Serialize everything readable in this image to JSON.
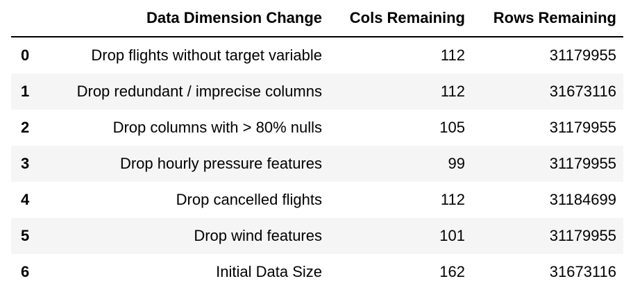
{
  "table": {
    "columns": [
      {
        "key": "index",
        "label": ""
      },
      {
        "key": "change",
        "label": "Data Dimension Change"
      },
      {
        "key": "cols",
        "label": "Cols Remaining"
      },
      {
        "key": "rows",
        "label": "Rows Remaining"
      }
    ],
    "rows": [
      {
        "index": "0",
        "change": "Drop flights without target variable",
        "cols": "112",
        "rows": "31179955"
      },
      {
        "index": "1",
        "change": "Drop redundant / imprecise columns",
        "cols": "112",
        "rows": "31673116"
      },
      {
        "index": "2",
        "change": "Drop columns with > 80% nulls",
        "cols": "105",
        "rows": "31179955"
      },
      {
        "index": "3",
        "change": "Drop hourly pressure features",
        "cols": "99",
        "rows": "31179955"
      },
      {
        "index": "4",
        "change": "Drop cancelled flights",
        "cols": "112",
        "rows": "31184699"
      },
      {
        "index": "5",
        "change": "Drop wind features",
        "cols": "101",
        "rows": "31179955"
      },
      {
        "index": "6",
        "change": "Initial Data Size",
        "cols": "162",
        "rows": "31673116"
      }
    ]
  }
}
